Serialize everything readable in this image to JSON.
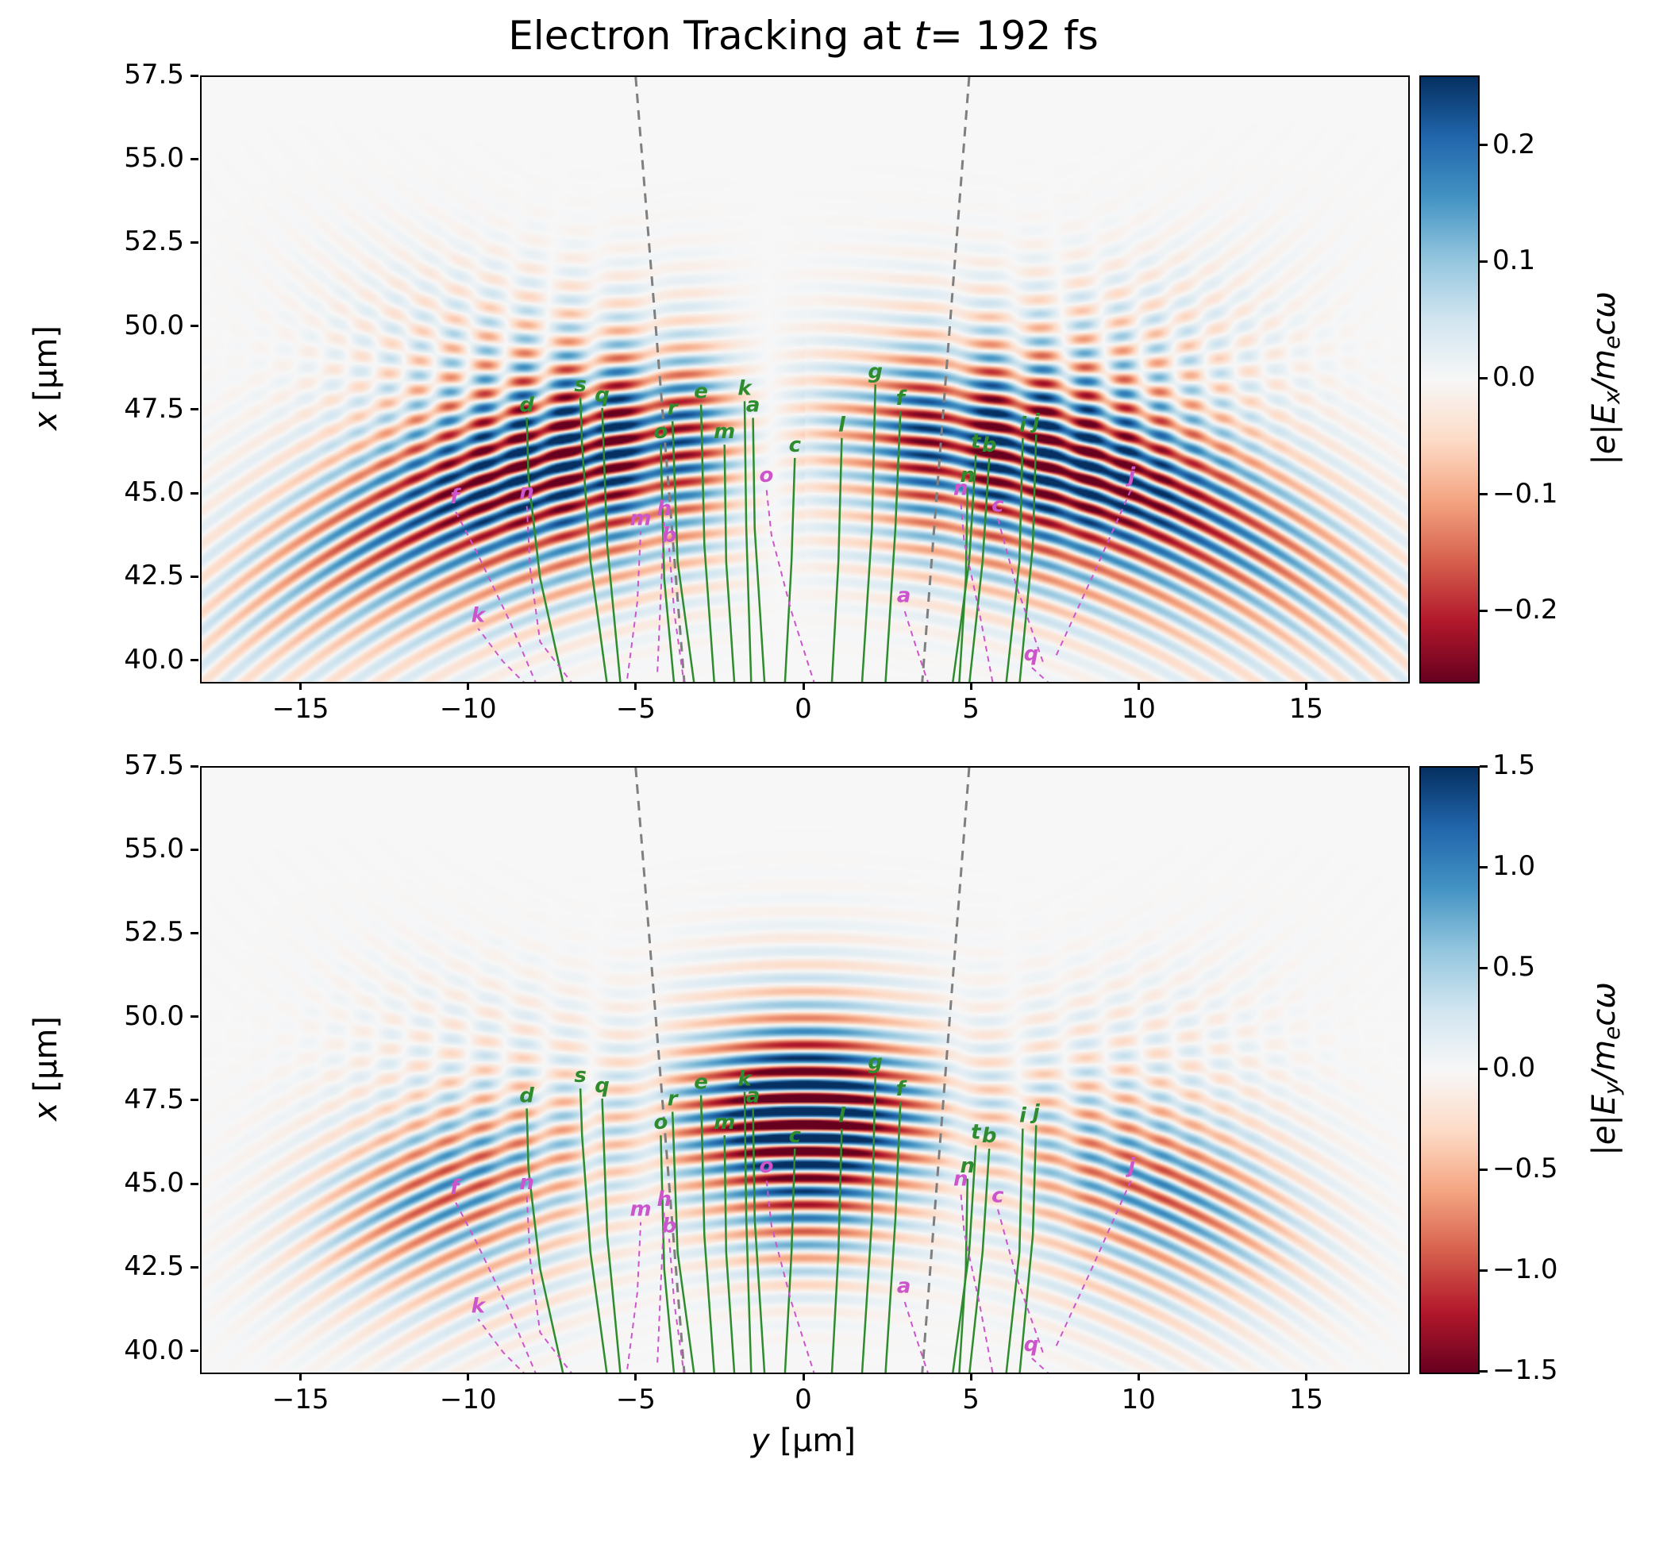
{
  "title": {
    "prefix": "Electron Tracking at ",
    "var": "t",
    "suffix": "= 192 fs"
  },
  "axes": {
    "ylabel_var": "x",
    "ylabel_unit": " [μm]",
    "xlabel_var": "y",
    "xlabel_unit": " [μm]"
  },
  "chart_data": {
    "type": "heatmap",
    "colormap": "RdBu",
    "grid": false,
    "colormap_stops": [
      {
        "p": 0.0,
        "c": "#67001f"
      },
      {
        "p": 0.1,
        "c": "#b2182b"
      },
      {
        "p": 0.2,
        "c": "#d6604d"
      },
      {
        "p": 0.3,
        "c": "#f4a582"
      },
      {
        "p": 0.4,
        "c": "#fddbc7"
      },
      {
        "p": 0.5,
        "c": "#f7f7f7"
      },
      {
        "p": 0.6,
        "c": "#d1e5f0"
      },
      {
        "p": 0.7,
        "c": "#92c5de"
      },
      {
        "p": 0.8,
        "c": "#4393c3"
      },
      {
        "p": 0.9,
        "c": "#2166ac"
      },
      {
        "p": 1.0,
        "c": "#053061"
      }
    ],
    "x_range": [
      -18,
      18
    ],
    "y_range": [
      39.4,
      57.5
    ],
    "x_ticks": [
      {
        "v": -15,
        "label": "−15"
      },
      {
        "v": -10,
        "label": "−10"
      },
      {
        "v": -5,
        "label": "−5"
      },
      {
        "v": 0,
        "label": "0"
      },
      {
        "v": 5,
        "label": "5"
      },
      {
        "v": 10,
        "label": "10"
      },
      {
        "v": 15,
        "label": "15"
      }
    ],
    "y_ticks": [
      {
        "v": 57.5,
        "label": "57.5"
      },
      {
        "v": 55,
        "label": "55.0"
      },
      {
        "v": 52.5,
        "label": "52.5"
      },
      {
        "v": 50,
        "label": "50.0"
      },
      {
        "v": 47.5,
        "label": "47.5"
      },
      {
        "v": 45,
        "label": "45.0"
      },
      {
        "v": 42.5,
        "label": "42.5"
      },
      {
        "v": 40,
        "label": "40.0"
      }
    ],
    "panels": [
      {
        "id": "ex",
        "colorbar": {
          "vmin": -0.26,
          "vmax": 0.26,
          "ticks": [
            {
              "v": 0.2,
              "label": "0.2"
            },
            {
              "v": 0.1,
              "label": "0.1"
            },
            {
              "v": 0.0,
              "label": "0.0"
            },
            {
              "v": -0.1,
              "label": "−0.1"
            },
            {
              "v": -0.2,
              "label": "−0.2"
            }
          ],
          "label": {
            "l1": "|e|E",
            "sub1": "x",
            "l2": "/m",
            "sub2": "e",
            "l3": "cω"
          }
        },
        "model": {
          "k": 7.85,
          "center": [
            0,
            20
          ],
          "r0": 27,
          "sigma_r": 2.3,
          "radial_sidelobes": [
            [
              -3.2,
              2.0,
              0.28
            ],
            [
              3.0,
              2.6,
              0.14
            ]
          ],
          "amp": 0.3,
          "vmax": 0.26,
          "angular": {
            "type": "odd",
            "lobe_sigma": 0.4,
            "central_amp": 0.18,
            "central_sigma": 0.1
          },
          "secondary": {
            "center": [
              0,
              69
            ],
            "r0": 22.5,
            "sigma_r": 3.0,
            "lobe_center": 0.35,
            "lobe_sigma": 0.25,
            "amp_rel": 0.25,
            "phase": 1.2
          }
        }
      },
      {
        "id": "ey",
        "colorbar": {
          "vmin": -1.5,
          "vmax": 1.5,
          "ticks": [
            {
              "v": 1.5,
              "label": "1.5"
            },
            {
              "v": 1.0,
              "label": "1.0"
            },
            {
              "v": 0.5,
              "label": "0.5"
            },
            {
              "v": 0.0,
              "label": "0.0"
            },
            {
              "v": -0.5,
              "label": "−0.5"
            },
            {
              "v": -1.0,
              "label": "−1.0"
            },
            {
              "v": -1.5,
              "label": "−1.5"
            }
          ],
          "label": {
            "l1": "|e|E",
            "sub1": "y",
            "l2": "/m",
            "sub2": "e",
            "l3": "cω"
          }
        },
        "model": {
          "k": 7.85,
          "center": [
            0,
            20
          ],
          "r0": 27,
          "sigma_r": 2.3,
          "radial_sidelobes": [
            [
              -3.2,
              2.0,
              0.28
            ],
            [
              3.0,
              2.6,
              0.14
            ]
          ],
          "amp": 1.0,
          "vmax": 1.5,
          "angular": {
            "type": "even",
            "central_amp": 2.4,
            "central_sigma": 0.115,
            "side_amp": 0.95,
            "side_center": 0.4,
            "side_sigma": 0.16
          },
          "secondary": {
            "center": [
              0,
              69
            ],
            "r0": 22.5,
            "sigma_r": 3.0,
            "lobe_center": 0.35,
            "lobe_sigma": 0.25,
            "amp_rel": 0.2,
            "phase": 1.2
          }
        }
      }
    ],
    "overlays": {
      "cone": {
        "color": "#7f7f7f",
        "width": 3,
        "dash": "12 9",
        "lines": [
          [
            [
              -5.05,
              57.5
            ],
            [
              -3.6,
              39.4
            ]
          ],
          [
            [
              4.9,
              57.5
            ],
            [
              3.5,
              39.4
            ]
          ]
        ]
      },
      "green": {
        "color": "#2e8b2e",
        "width": 2.5,
        "trajectories": [
          {
            "label": "d",
            "points": [
              [
                -7.2,
                39.3
              ],
              [
                -7.9,
                42.5
              ],
              [
                -8.25,
                45.5
              ],
              [
                -8.3,
                47.3
              ]
            ]
          },
          {
            "label": "s",
            "points": [
              [
                -5.9,
                39.3
              ],
              [
                -6.4,
                43
              ],
              [
                -6.65,
                46.5
              ],
              [
                -6.7,
                47.9
              ]
            ]
          },
          {
            "label": "q",
            "points": [
              [
                -5.5,
                39.3
              ],
              [
                -5.9,
                43.5
              ],
              [
                -6.05,
                47.6
              ]
            ]
          },
          {
            "label": "r",
            "points": [
              [
                -3.3,
                39.3
              ],
              [
                -3.8,
                43
              ],
              [
                -3.95,
                47.2
              ]
            ]
          },
          {
            "label": "o",
            "points": [
              [
                -3.9,
                39.3
              ],
              [
                -4.2,
                42.5
              ],
              [
                -4.3,
                46.5
              ]
            ]
          },
          {
            "label": "e",
            "points": [
              [
                -2.7,
                39.3
              ],
              [
                -3.0,
                43.5
              ],
              [
                -3.1,
                47.7
              ]
            ]
          },
          {
            "label": "m",
            "points": [
              [
                -2.1,
                39.3
              ],
              [
                -2.35,
                43
              ],
              [
                -2.4,
                46.5
              ]
            ]
          },
          {
            "label": "k",
            "points": [
              [
                -1.6,
                39.3
              ],
              [
                -1.75,
                44
              ],
              [
                -1.8,
                47.8
              ]
            ]
          },
          {
            "label": "a",
            "points": [
              [
                -1.2,
                39.3
              ],
              [
                -1.5,
                44
              ],
              [
                -1.55,
                47.3
              ]
            ]
          },
          {
            "label": "c",
            "points": [
              [
                -0.6,
                39.3
              ],
              [
                -0.4,
                43
              ],
              [
                -0.3,
                46.1
              ]
            ]
          },
          {
            "label": "l",
            "points": [
              [
                0.8,
                39.3
              ],
              [
                1.0,
                43
              ],
              [
                1.1,
                46.7
              ]
            ]
          },
          {
            "label": "g",
            "points": [
              [
                1.7,
                39.3
              ],
              [
                2.0,
                44
              ],
              [
                2.1,
                48.3
              ]
            ]
          },
          {
            "label": "f",
            "points": [
              [
                2.4,
                39.3
              ],
              [
                2.7,
                44
              ],
              [
                2.85,
                47.5
              ]
            ]
          },
          {
            "label": "t",
            "points": [
              [
                4.4,
                39.3
              ],
              [
                4.9,
                43
              ],
              [
                5.1,
                46.2
              ]
            ]
          },
          {
            "label": "b",
            "points": [
              [
                4.9,
                39.3
              ],
              [
                5.3,
                43
              ],
              [
                5.5,
                46.1
              ]
            ]
          },
          {
            "label": "n",
            "points": [
              [
                4.6,
                39.3
              ],
              [
                4.8,
                42.5
              ],
              [
                4.85,
                45.2
              ]
            ]
          },
          {
            "label": "i",
            "points": [
              [
                6.0,
                39.3
              ],
              [
                6.4,
                43
              ],
              [
                6.5,
                46.7
              ]
            ]
          },
          {
            "label": "j",
            "points": [
              [
                6.4,
                39.3
              ],
              [
                6.8,
                43.5
              ],
              [
                6.9,
                46.8
              ]
            ]
          }
        ]
      },
      "magenta": {
        "color": "#cc55cc",
        "width": 2,
        "dash": "7 6",
        "trajectories": [
          {
            "label": "f",
            "points": [
              [
                -8.0,
                39.3
              ],
              [
                -8.8,
                41.2
              ],
              [
                -9.8,
                43.3
              ],
              [
                -10.45,
                44.55
              ]
            ]
          },
          {
            "label": "n",
            "points": [
              [
                -6.9,
                39.3
              ],
              [
                -7.9,
                40.6
              ],
              [
                -8.2,
                42.8
              ],
              [
                -8.3,
                44.7
              ]
            ]
          },
          {
            "label": "k",
            "points": [
              [
                -8.3,
                39.3
              ],
              [
                -9.0,
                40.0
              ],
              [
                -9.75,
                41.0
              ]
            ]
          },
          {
            "label": "m",
            "points": [
              [
                -5.3,
                39.5
              ],
              [
                -5.0,
                41.8
              ],
              [
                -4.9,
                43.9
              ]
            ]
          },
          {
            "label": "h",
            "points": [
              [
                -4.4,
                39.7
              ],
              [
                -4.3,
                42.0
              ],
              [
                -4.2,
                44.2
              ]
            ]
          },
          {
            "label": "b",
            "points": [
              [
                -3.6,
                39.3
              ],
              [
                -3.9,
                41.5
              ],
              [
                -4.05,
                43.4
              ]
            ]
          },
          {
            "label": "o",
            "points": [
              [
                0.3,
                39.3
              ],
              [
                -0.4,
                41.5
              ],
              [
                -1.0,
                43.8
              ],
              [
                -1.15,
                45.2
              ]
            ]
          },
          {
            "label": "a",
            "points": [
              [
                3.7,
                39.3
              ],
              [
                3.3,
                40.5
              ],
              [
                2.95,
                41.6
              ]
            ]
          },
          {
            "label": "q",
            "points": [
              [
                7.35,
                39.3
              ],
              [
                6.75,
                39.85
              ]
            ]
          },
          {
            "label": "c",
            "points": [
              [
                7.1,
                40.0
              ],
              [
                6.3,
                42.3
              ],
              [
                5.75,
                44.3
              ]
            ]
          },
          {
            "label": "n",
            "points": [
              [
                5.6,
                39.4
              ],
              [
                5.2,
                41.5
              ],
              [
                4.75,
                43.6
              ],
              [
                4.65,
                44.8
              ]
            ]
          },
          {
            "label": "j",
            "points": [
              [
                7.5,
                40.2
              ],
              [
                8.6,
                42.6
              ],
              [
                9.75,
                45.2
              ]
            ]
          }
        ]
      }
    }
  }
}
